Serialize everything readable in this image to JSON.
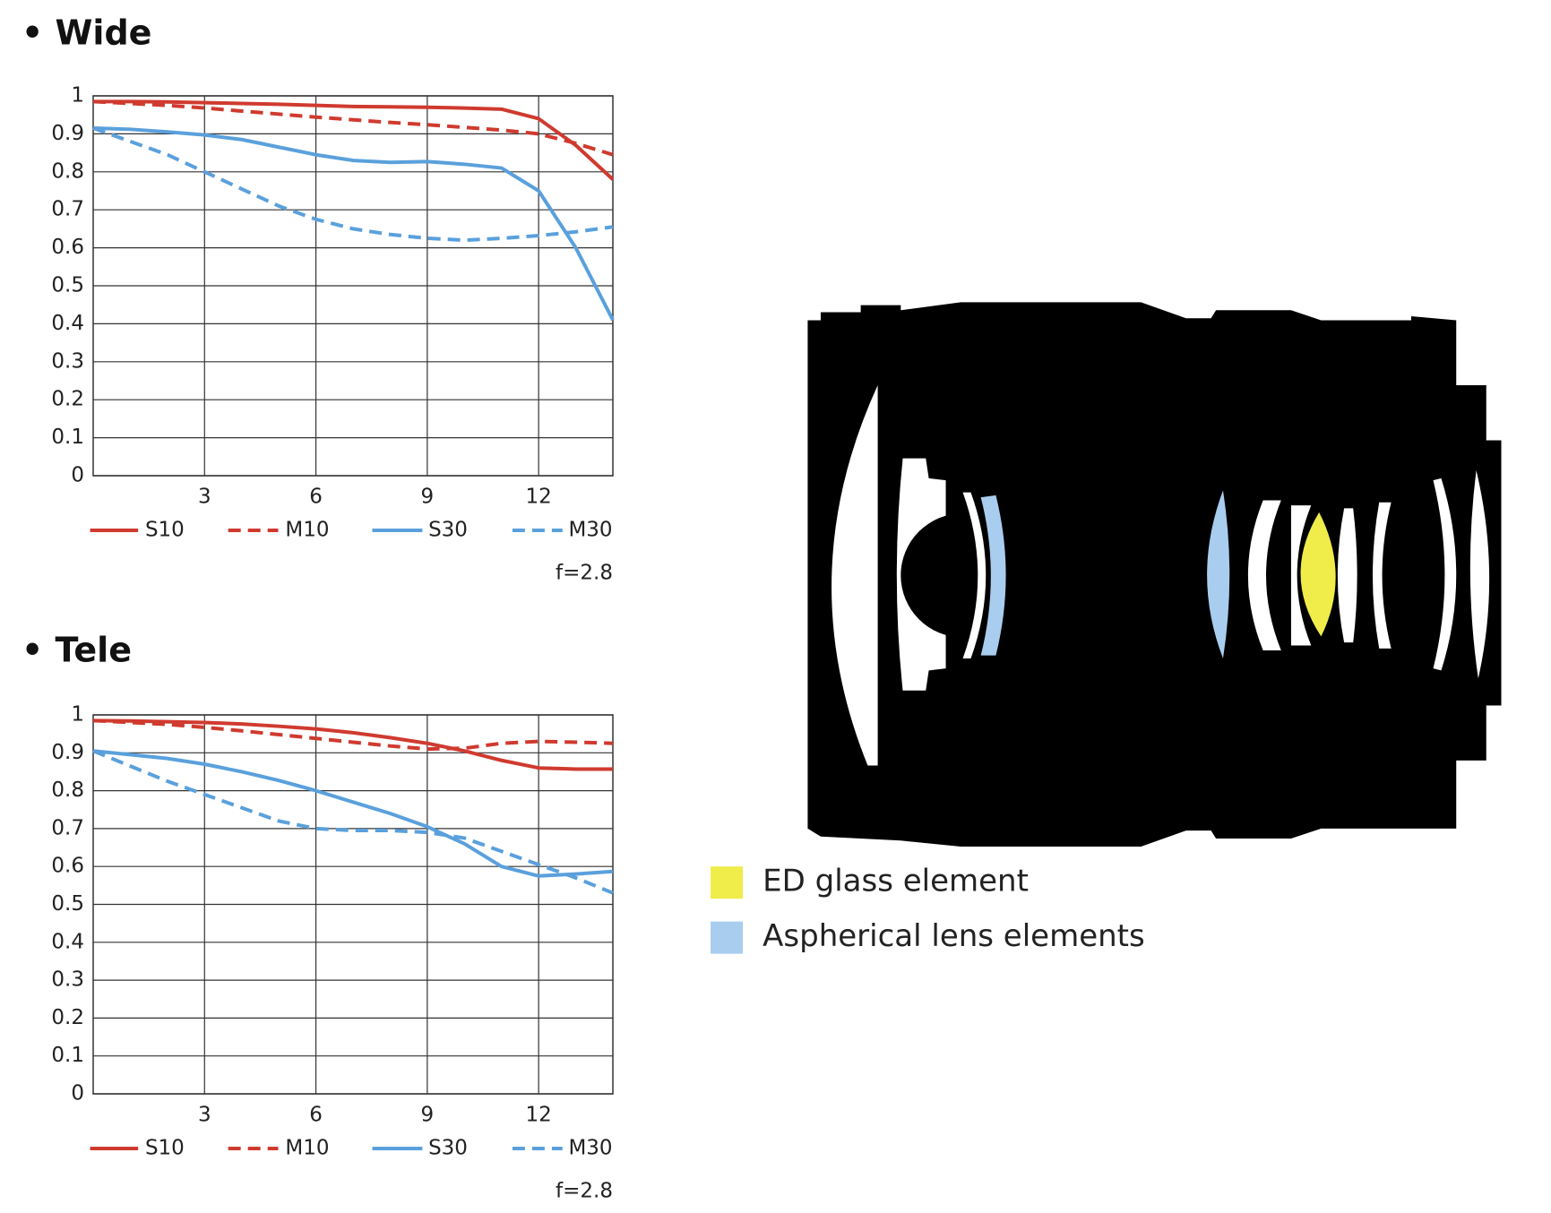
{
  "chart_data": [
    {
      "type": "line",
      "title": "• Wide",
      "annotation": "f=2.8",
      "x": [
        0,
        1,
        2,
        3,
        4,
        5,
        6,
        7,
        8,
        9,
        10,
        11,
        12,
        13,
        14
      ],
      "xlim": [
        0,
        14
      ],
      "xticks": [
        3,
        6,
        9,
        12
      ],
      "ylim": [
        0,
        1
      ],
      "yticks": [
        0,
        0.1,
        0.2,
        0.3,
        0.4,
        0.5,
        0.6,
        0.7,
        0.8,
        0.9,
        1
      ],
      "grid": true,
      "series": [
        {
          "name": "S10",
          "color": "#d03a2f",
          "style": "solid",
          "values": [
            0.985,
            0.985,
            0.984,
            0.982,
            0.98,
            0.978,
            0.975,
            0.972,
            0.971,
            0.97,
            0.968,
            0.965,
            0.94,
            0.87,
            0.78
          ]
        },
        {
          "name": "M10",
          "color": "#d03a2f",
          "style": "dashed",
          "values": [
            0.985,
            0.98,
            0.975,
            0.968,
            0.96,
            0.952,
            0.944,
            0.937,
            0.93,
            0.924,
            0.917,
            0.91,
            0.9,
            0.875,
            0.845
          ]
        },
        {
          "name": "S30",
          "color": "#5aa0dc",
          "style": "solid",
          "values": [
            0.915,
            0.912,
            0.905,
            0.897,
            0.885,
            0.865,
            0.845,
            0.83,
            0.825,
            0.827,
            0.82,
            0.81,
            0.75,
            0.6,
            0.41
          ]
        },
        {
          "name": "M30",
          "color": "#5aa0dc",
          "style": "dashed",
          "values": [
            0.915,
            0.88,
            0.845,
            0.8,
            0.755,
            0.71,
            0.675,
            0.65,
            0.635,
            0.625,
            0.62,
            0.625,
            0.632,
            0.642,
            0.655
          ]
        }
      ]
    },
    {
      "type": "line",
      "title": "• Tele",
      "annotation": "f=2.8",
      "x": [
        0,
        1,
        2,
        3,
        4,
        5,
        6,
        7,
        8,
        9,
        10,
        11,
        12,
        13,
        14
      ],
      "xlim": [
        0,
        14
      ],
      "xticks": [
        3,
        6,
        9,
        12
      ],
      "ylim": [
        0,
        1
      ],
      "yticks": [
        0,
        0.1,
        0.2,
        0.3,
        0.4,
        0.5,
        0.6,
        0.7,
        0.8,
        0.9,
        1
      ],
      "grid": true,
      "series": [
        {
          "name": "S10",
          "color": "#d03a2f",
          "style": "solid",
          "values": [
            0.985,
            0.984,
            0.982,
            0.98,
            0.976,
            0.97,
            0.963,
            0.953,
            0.94,
            0.925,
            0.905,
            0.88,
            0.86,
            0.857,
            0.857
          ]
        },
        {
          "name": "M10",
          "color": "#d03a2f",
          "style": "dashed",
          "values": [
            0.985,
            0.98,
            0.975,
            0.967,
            0.958,
            0.948,
            0.938,
            0.928,
            0.918,
            0.91,
            0.912,
            0.925,
            0.93,
            0.928,
            0.925
          ]
        },
        {
          "name": "S30",
          "color": "#5aa0dc",
          "style": "solid",
          "values": [
            0.905,
            0.895,
            0.885,
            0.87,
            0.85,
            0.827,
            0.8,
            0.77,
            0.74,
            0.705,
            0.66,
            0.6,
            0.575,
            0.58,
            0.587
          ]
        },
        {
          "name": "M30",
          "color": "#5aa0dc",
          "style": "dashed",
          "values": [
            0.905,
            0.865,
            0.825,
            0.79,
            0.755,
            0.72,
            0.7,
            0.695,
            0.695,
            0.69,
            0.675,
            0.64,
            0.605,
            0.57,
            0.53
          ]
        }
      ]
    }
  ],
  "lens_legend": [
    {
      "label": "ED glass element",
      "color": "#f0ec4a"
    },
    {
      "label": "Aspherical lens elements",
      "color": "#a8cdef"
    }
  ]
}
